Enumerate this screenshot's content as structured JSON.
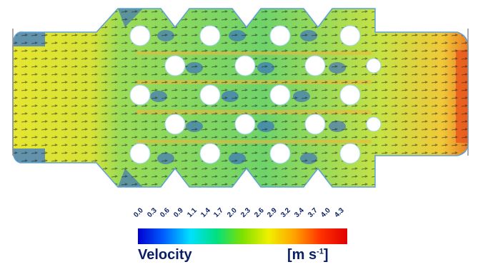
{
  "colorbar": {
    "ticks": [
      "0.0",
      "0.3",
      "0.6",
      "0.9",
      "1.1",
      "1.4",
      "1.7",
      "2.0",
      "2.3",
      "2.6",
      "2.9",
      "3.2",
      "3.4",
      "3.7",
      "4.0",
      "4.3"
    ],
    "quantity_label": "Velocity",
    "unit_open": "[m s",
    "unit_exponent": "-1",
    "unit_close": "]",
    "colors": [
      "#0000d0",
      "#0060ff",
      "#00e0ff",
      "#00e080",
      "#80e000",
      "#f0f000",
      "#ffa000",
      "#ff3000",
      "#e00000"
    ]
  },
  "simulation": {
    "domain": "flow field with staggered cylinder array",
    "colors": {
      "low": "#1d4fd6",
      "mid": "#5fd06a",
      "high": "#f6d83a",
      "peak": "#ee6a1c"
    }
  }
}
